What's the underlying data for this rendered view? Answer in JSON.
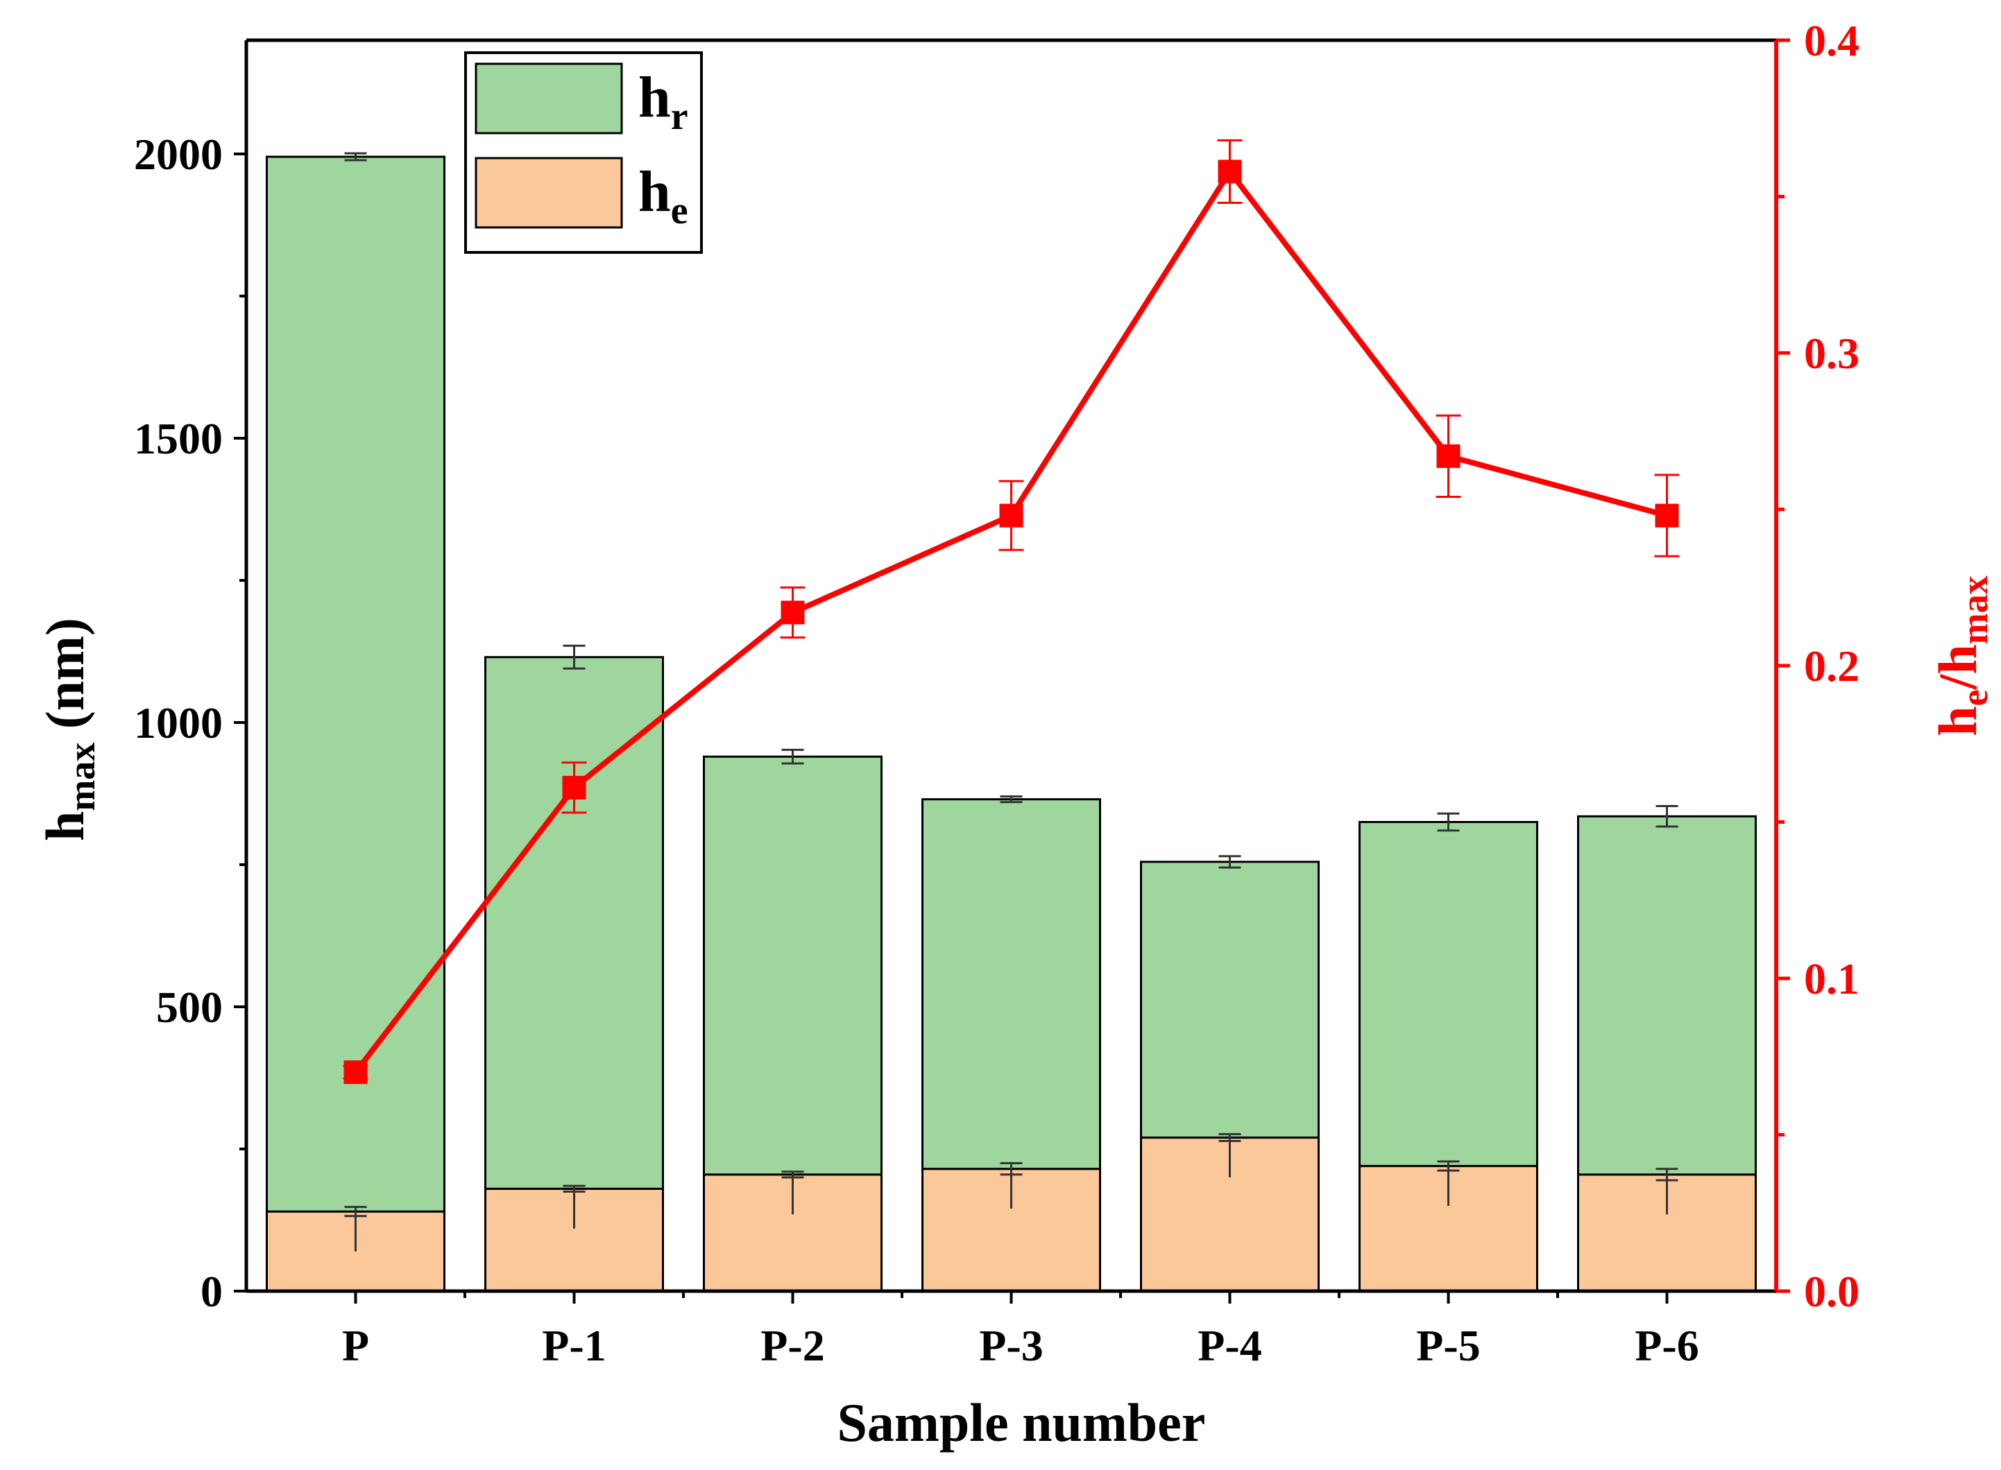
{
  "chart_data": {
    "type": "bar",
    "subtype": "stacked bar with line on secondary axis",
    "xlabel": "Sample number",
    "categories": [
      "P",
      "P-1",
      "P-2",
      "P-3",
      "P-4",
      "P-5",
      "P-6"
    ],
    "left_axis": {
      "label_base": "h",
      "label_sub": "max",
      "label_unit": " (nm)",
      "ylim": [
        0,
        2200
      ],
      "major_ticks": [
        0,
        500,
        1000,
        1500,
        2000
      ],
      "minor_ticks": [
        250,
        750,
        1250,
        1750
      ]
    },
    "right_axis": {
      "label_base1": "h",
      "label_sub1": "e",
      "label_slash": "/h",
      "label_sub2": "max",
      "ylim": [
        0,
        0.4
      ],
      "major_ticks": [
        "0.0",
        "0.1",
        "0.2",
        "0.3",
        "0.4"
      ],
      "minor_ticks": [
        0.05,
        0.15,
        0.25,
        0.35
      ],
      "color": "#ff0000"
    },
    "series": [
      {
        "name_base": "h",
        "name_sub": "e",
        "kind": "stacked-bar-bottom",
        "color": "#fbc89a",
        "values": [
          140,
          180,
          205,
          215,
          270,
          220,
          205
        ],
        "errors": [
          8,
          5,
          5,
          10,
          6,
          8,
          10
        ]
      },
      {
        "name_base": "h",
        "name_sub": "r",
        "kind": "stacked-bar-top",
        "color": "#9ed69d",
        "values": [
          1855,
          935,
          735,
          650,
          485,
          605,
          630
        ],
        "total_errors": [
          6,
          20,
          12,
          5,
          10,
          15,
          18
        ]
      },
      {
        "name": "he/hmax",
        "kind": "line",
        "axis": "right",
        "color": "#ff0000",
        "values": [
          0.07,
          0.161,
          0.217,
          0.248,
          0.358,
          0.267,
          0.248
        ],
        "errors": [
          0.002,
          0.008,
          0.008,
          0.011,
          0.01,
          0.013,
          0.013
        ]
      }
    ],
    "legend": {
      "position": "top-left",
      "order": [
        "h_r",
        "h_e"
      ]
    },
    "grid": false
  }
}
